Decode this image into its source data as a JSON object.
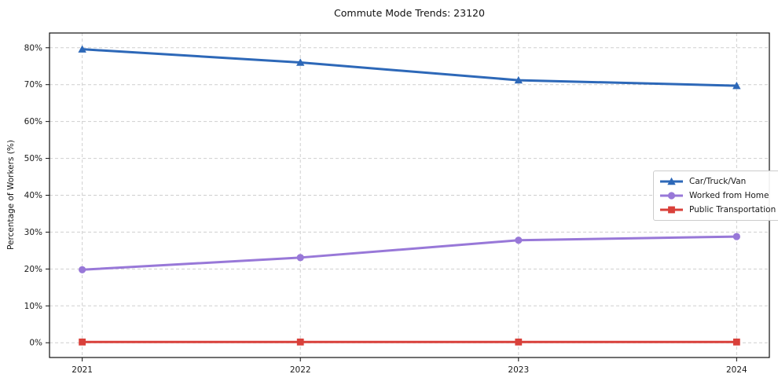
{
  "title": "Commute Mode Trends: 23120",
  "colors": {
    "car_line": "#2d68b8",
    "home_line": "#9878d8",
    "transit_line": "#d9403a",
    "grid": "#cfcfcf",
    "spine": "#111111",
    "text": "#1a1a1a",
    "legend_border": "#cccccc"
  },
  "chart_data": {
    "type": "line",
    "title": "Commute Mode Trends: 23120",
    "xlabel": "",
    "ylabel": "Percentage of Workers (%)",
    "x": [
      2021,
      2022,
      2023,
      2024
    ],
    "x_tick_labels": [
      "2021",
      "2022",
      "2023",
      "2024"
    ],
    "y_ticks": [
      0,
      10,
      20,
      30,
      40,
      50,
      60,
      70,
      80
    ],
    "y_tick_labels": [
      "0%",
      "10%",
      "20%",
      "30%",
      "40%",
      "50%",
      "60%",
      "70%",
      "80%"
    ],
    "xlim": [
      2020.85,
      2024.15
    ],
    "ylim": [
      -4,
      84
    ],
    "grid": true,
    "grid_style": "dashed",
    "legend_position": "center right",
    "series": [
      {
        "name": "Car/Truck/Van",
        "marker": "triangle",
        "color": "#2d68b8",
        "values": [
          79.6,
          76.0,
          71.2,
          69.7
        ]
      },
      {
        "name": "Worked from Home",
        "marker": "circle",
        "color": "#9878d8",
        "values": [
          19.8,
          23.1,
          27.8,
          28.8
        ]
      },
      {
        "name": "Public Transportation",
        "marker": "square",
        "color": "#d9403a",
        "values": [
          0.2,
          0.2,
          0.2,
          0.2
        ]
      }
    ]
  }
}
